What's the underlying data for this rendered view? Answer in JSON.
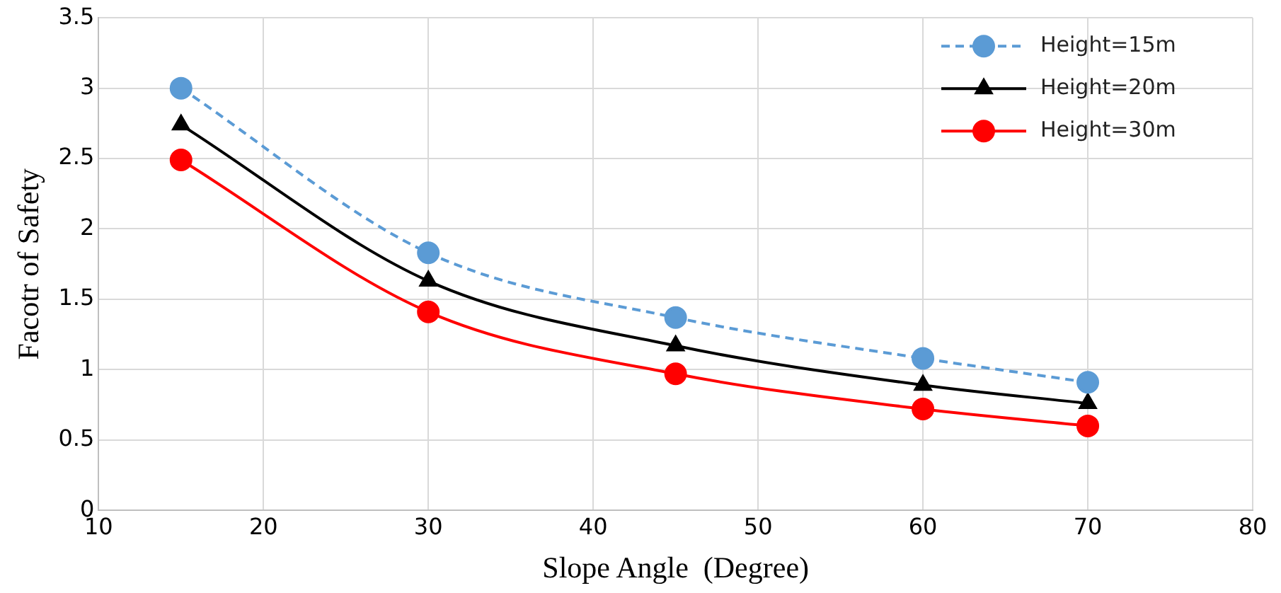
{
  "chart_data": {
    "type": "line",
    "xlabel": "Slope Angle  (Degree)",
    "ylabel": "Facotr of Safety",
    "x": [
      15,
      30,
      45,
      60,
      70
    ],
    "series": [
      {
        "name": "Height=15m",
        "color": "#5b9bd5",
        "values": [
          3.0,
          1.83,
          1.37,
          1.08,
          0.91
        ],
        "marker": "circle",
        "line_style": "dashed"
      },
      {
        "name": "Height=20m",
        "color": "#000000",
        "values": [
          2.74,
          1.63,
          1.17,
          0.89,
          0.76
        ],
        "marker": "triangle",
        "line_style": "solid"
      },
      {
        "name": "Height=30m",
        "color": "#ff0000",
        "values": [
          2.49,
          1.41,
          0.97,
          0.72,
          0.6
        ],
        "marker": "circle",
        "line_style": "solid"
      }
    ],
    "xlim": [
      10,
      80
    ],
    "xticks": [
      10,
      20,
      30,
      40,
      50,
      60,
      70,
      80
    ],
    "ylim": [
      0,
      3.5
    ],
    "yticks": [
      0,
      0.5,
      1,
      1.5,
      2,
      2.5,
      3,
      3.5
    ],
    "grid": true,
    "legend": "top right"
  }
}
